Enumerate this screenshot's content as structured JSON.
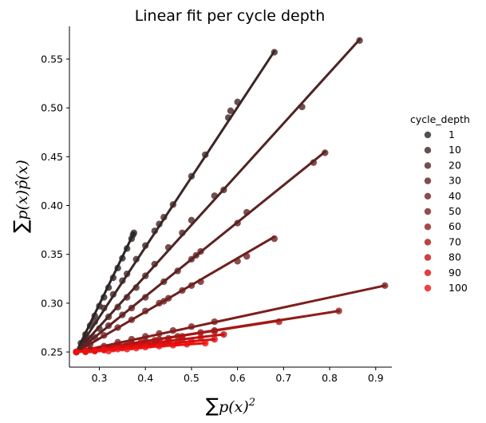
{
  "chart_data": {
    "type": "scatter",
    "title": "Linear fit per cycle depth",
    "xlabel": "∑p(x)²",
    "xlabel_parts": {
      "sum": "∑",
      "expr": "p(x)",
      "sup": "2"
    },
    "ylabel": "∑p(x)p̂(x)",
    "ylabel_parts": {
      "sum": "∑",
      "expr": "p(x)p̂(x)"
    },
    "xlim": [
      0.235,
      0.935
    ],
    "ylim": [
      0.2345,
      0.5835
    ],
    "xticks": [
      0.3,
      0.4,
      0.5,
      0.6,
      0.7,
      0.8,
      0.9
    ],
    "xtick_labels": [
      "0.3",
      "0.4",
      "0.5",
      "0.6",
      "0.7",
      "0.8",
      "0.9"
    ],
    "yticks": [
      0.25,
      0.3,
      0.35,
      0.4,
      0.45,
      0.5,
      0.55
    ],
    "ytick_labels": [
      "0.25",
      "0.30",
      "0.35",
      "0.40",
      "0.45",
      "0.50",
      "0.55"
    ],
    "grid": false,
    "legend": {
      "title": "cycle_depth",
      "placement": "right"
    },
    "series": [
      {
        "name": "1",
        "color": "#2a2424",
        "fit": [
          [
            0.25,
            0.25
          ],
          [
            0.375,
            0.372
          ]
        ],
        "points": [
          [
            0.25,
            0.25
          ],
          [
            0.26,
            0.259
          ],
          [
            0.27,
            0.268
          ],
          [
            0.28,
            0.277
          ],
          [
            0.29,
            0.287
          ],
          [
            0.3,
            0.297
          ],
          [
            0.31,
            0.306
          ],
          [
            0.32,
            0.316
          ],
          [
            0.33,
            0.326
          ],
          [
            0.34,
            0.336
          ],
          [
            0.35,
            0.346
          ],
          [
            0.36,
            0.356
          ],
          [
            0.37,
            0.366
          ],
          [
            0.373,
            0.37
          ],
          [
            0.375,
            0.372
          ]
        ]
      },
      {
        "name": "10",
        "color": "#3e2626",
        "fit": [
          [
            0.25,
            0.25
          ],
          [
            0.68,
            0.558
          ]
        ],
        "points": [
          [
            0.25,
            0.25
          ],
          [
            0.27,
            0.262
          ],
          [
            0.29,
            0.281
          ],
          [
            0.31,
            0.295
          ],
          [
            0.33,
            0.309
          ],
          [
            0.35,
            0.323
          ],
          [
            0.36,
            0.33
          ],
          [
            0.38,
            0.345
          ],
          [
            0.4,
            0.359
          ],
          [
            0.42,
            0.374
          ],
          [
            0.43,
            0.381
          ],
          [
            0.44,
            0.388
          ],
          [
            0.46,
            0.401
          ],
          [
            0.5,
            0.43
          ],
          [
            0.53,
            0.452
          ],
          [
            0.58,
            0.49
          ],
          [
            0.585,
            0.497
          ],
          [
            0.6,
            0.506
          ],
          [
            0.68,
            0.557
          ]
        ]
      },
      {
        "name": "20",
        "color": "#4e2424",
        "fit": [
          [
            0.25,
            0.25
          ],
          [
            0.865,
            0.57
          ]
        ],
        "points": [
          [
            0.25,
            0.25
          ],
          [
            0.28,
            0.264
          ],
          [
            0.3,
            0.274
          ],
          [
            0.32,
            0.286
          ],
          [
            0.34,
            0.296
          ],
          [
            0.36,
            0.306
          ],
          [
            0.38,
            0.316
          ],
          [
            0.4,
            0.328
          ],
          [
            0.42,
            0.34
          ],
          [
            0.45,
            0.357
          ],
          [
            0.48,
            0.372
          ],
          [
            0.5,
            0.385
          ],
          [
            0.55,
            0.41
          ],
          [
            0.57,
            0.416
          ],
          [
            0.74,
            0.501
          ],
          [
            0.865,
            0.569
          ]
        ]
      },
      {
        "name": "30",
        "color": "#5e2222",
        "fit": [
          [
            0.25,
            0.25
          ],
          [
            0.79,
            0.455
          ]
        ],
        "points": [
          [
            0.25,
            0.25
          ],
          [
            0.29,
            0.265
          ],
          [
            0.32,
            0.277
          ],
          [
            0.35,
            0.288
          ],
          [
            0.37,
            0.295
          ],
          [
            0.4,
            0.306
          ],
          [
            0.44,
            0.322
          ],
          [
            0.47,
            0.333
          ],
          [
            0.5,
            0.345
          ],
          [
            0.51,
            0.349
          ],
          [
            0.52,
            0.353
          ],
          [
            0.6,
            0.382
          ],
          [
            0.62,
            0.393
          ],
          [
            0.765,
            0.444
          ],
          [
            0.79,
            0.454
          ]
        ]
      },
      {
        "name": "40",
        "color": "#6e2020",
        "fit": [
          [
            0.25,
            0.25
          ],
          [
            0.68,
            0.368
          ]
        ],
        "points": [
          [
            0.25,
            0.25
          ],
          [
            0.28,
            0.258
          ],
          [
            0.31,
            0.267
          ],
          [
            0.34,
            0.275
          ],
          [
            0.37,
            0.283
          ],
          [
            0.4,
            0.292
          ],
          [
            0.43,
            0.3
          ],
          [
            0.44,
            0.302
          ],
          [
            0.45,
            0.305
          ],
          [
            0.48,
            0.313
          ],
          [
            0.5,
            0.318
          ],
          [
            0.52,
            0.322
          ],
          [
            0.6,
            0.343
          ],
          [
            0.62,
            0.348
          ],
          [
            0.68,
            0.366
          ]
        ]
      },
      {
        "name": "50",
        "color": "#7e1e1e",
        "fit": [
          [
            0.25,
            0.25
          ],
          [
            0.92,
            0.318
          ]
        ],
        "points": [
          [
            0.25,
            0.25
          ],
          [
            0.28,
            0.253
          ],
          [
            0.31,
            0.256
          ],
          [
            0.34,
            0.26
          ],
          [
            0.37,
            0.263
          ],
          [
            0.4,
            0.266
          ],
          [
            0.43,
            0.269
          ],
          [
            0.46,
            0.272
          ],
          [
            0.5,
            0.276
          ],
          [
            0.55,
            0.281
          ],
          [
            0.92,
            0.318
          ]
        ]
      },
      {
        "name": "60",
        "color": "#901b1b",
        "fit": [
          [
            0.25,
            0.25
          ],
          [
            0.82,
            0.292
          ]
        ],
        "points": [
          [
            0.25,
            0.25
          ],
          [
            0.28,
            0.252
          ],
          [
            0.31,
            0.254
          ],
          [
            0.34,
            0.257
          ],
          [
            0.37,
            0.259
          ],
          [
            0.4,
            0.261
          ],
          [
            0.43,
            0.263
          ],
          [
            0.47,
            0.266
          ],
          [
            0.52,
            0.27
          ],
          [
            0.55,
            0.272
          ],
          [
            0.82,
            0.292
          ]
        ]
      },
      {
        "name": "70",
        "color": "#a81616",
        "fit": [
          [
            0.25,
            0.25
          ],
          [
            0.69,
            0.282
          ]
        ],
        "points": [
          [
            0.25,
            0.25
          ],
          [
            0.27,
            0.251
          ],
          [
            0.3,
            0.253
          ],
          [
            0.33,
            0.255
          ],
          [
            0.36,
            0.257
          ],
          [
            0.39,
            0.26
          ],
          [
            0.42,
            0.262
          ],
          [
            0.45,
            0.264
          ],
          [
            0.48,
            0.266
          ],
          [
            0.55,
            0.271
          ],
          [
            0.69,
            0.281
          ]
        ]
      },
      {
        "name": "80",
        "color": "#c01212",
        "fit": [
          [
            0.25,
            0.25
          ],
          [
            0.57,
            0.268
          ]
        ],
        "points": [
          [
            0.25,
            0.25
          ],
          [
            0.27,
            0.251
          ],
          [
            0.29,
            0.252
          ],
          [
            0.31,
            0.253
          ],
          [
            0.33,
            0.254
          ],
          [
            0.35,
            0.255
          ],
          [
            0.37,
            0.256
          ],
          [
            0.39,
            0.258
          ],
          [
            0.42,
            0.259
          ],
          [
            0.45,
            0.261
          ],
          [
            0.48,
            0.263
          ],
          [
            0.52,
            0.265
          ],
          [
            0.57,
            0.268
          ]
        ]
      },
      {
        "name": "90",
        "color": "#d90e0e",
        "fit": [
          [
            0.25,
            0.25
          ],
          [
            0.55,
            0.263
          ]
        ],
        "points": [
          [
            0.25,
            0.25
          ],
          [
            0.27,
            0.251
          ],
          [
            0.29,
            0.251
          ],
          [
            0.31,
            0.252
          ],
          [
            0.33,
            0.253
          ],
          [
            0.35,
            0.254
          ],
          [
            0.37,
            0.255
          ],
          [
            0.39,
            0.256
          ],
          [
            0.41,
            0.257
          ],
          [
            0.44,
            0.258
          ],
          [
            0.47,
            0.259
          ],
          [
            0.5,
            0.261
          ],
          [
            0.55,
            0.263
          ]
        ]
      },
      {
        "name": "100",
        "color": "#ee1010",
        "fit": [
          [
            0.25,
            0.25
          ],
          [
            0.53,
            0.259
          ]
        ],
        "points": [
          [
            0.25,
            0.25
          ],
          [
            0.27,
            0.25
          ],
          [
            0.29,
            0.251
          ],
          [
            0.31,
            0.252
          ],
          [
            0.32,
            0.251
          ],
          [
            0.34,
            0.253
          ],
          [
            0.36,
            0.253
          ],
          [
            0.38,
            0.254
          ],
          [
            0.4,
            0.255
          ],
          [
            0.43,
            0.256
          ],
          [
            0.46,
            0.257
          ],
          [
            0.49,
            0.258
          ],
          [
            0.53,
            0.259
          ]
        ]
      }
    ]
  }
}
